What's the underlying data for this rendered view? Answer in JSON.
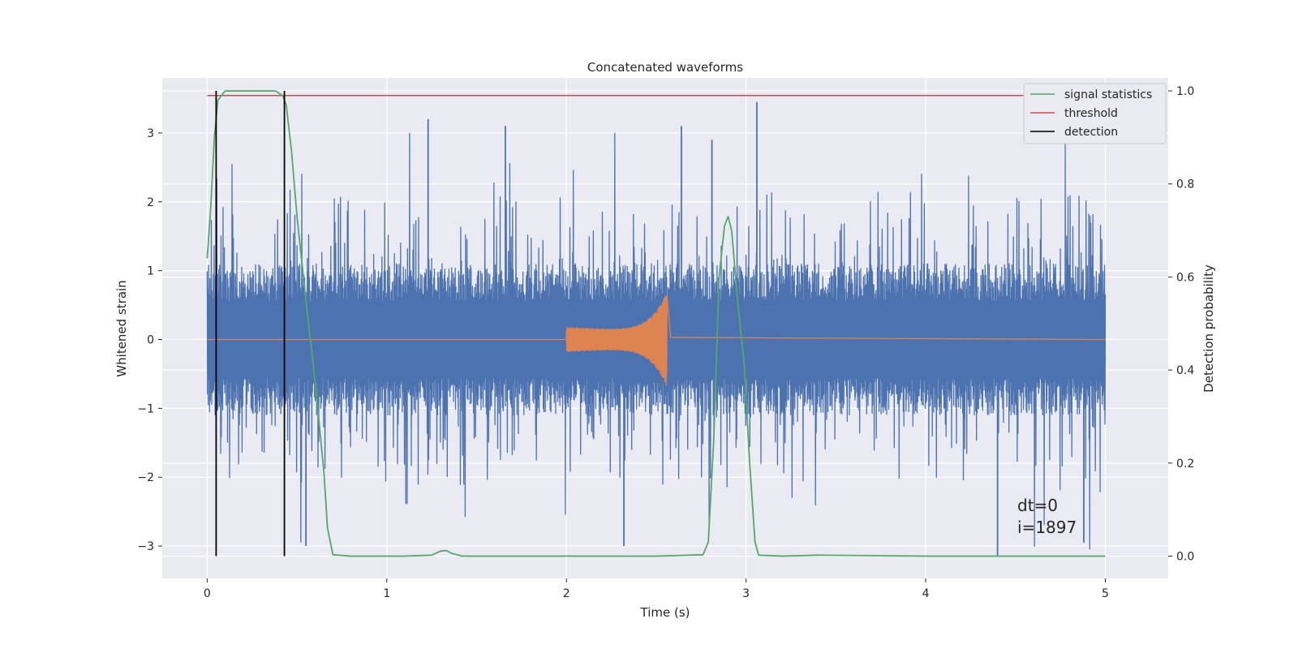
{
  "chart_data": {
    "type": "line",
    "title": "Concatenated waveforms",
    "xlabel": "Time (s)",
    "ylabel": "Whitened strain",
    "ylabel_right": "Detection probability",
    "xlim": [
      -0.25,
      5.35
    ],
    "ylim": [
      -3.47,
      3.8
    ],
    "ylim_right": [
      -0.048,
      1.028
    ],
    "xticks": [
      0,
      1,
      2,
      3,
      4,
      5
    ],
    "xtick_labels": [
      "0",
      "1",
      "2",
      "3",
      "4",
      "5"
    ],
    "yticks": [
      -3,
      -2,
      -1,
      0,
      1,
      2,
      3
    ],
    "ytick_labels": [
      "−3",
      "−2",
      "−1",
      "0",
      "1",
      "2",
      "3"
    ],
    "yticks_right": [
      0.0,
      0.2,
      0.4,
      0.6,
      0.8,
      1.0
    ],
    "ytick_labels_right": [
      "0.0",
      "0.2",
      "0.4",
      "0.6",
      "0.8",
      "1.0"
    ],
    "grid": true,
    "legend_position": "top-right",
    "colors": {
      "background": "#eaeaf2",
      "grid": "#ffffff",
      "strain": "#4c72b0",
      "injected": "#dd8452",
      "signal_statistics": "#55a868",
      "threshold": "#c44e52",
      "detection": "#000000"
    },
    "series": [
      {
        "name": "strain",
        "axis": "left",
        "kind": "noise",
        "x_range": [
          0,
          5
        ],
        "typical_envelope": 1.2,
        "spikes": [
          {
            "x": 0.55,
            "y": -3.0
          },
          {
            "x": 1.23,
            "y": 3.2
          },
          {
            "x": 1.66,
            "y": 3.1
          },
          {
            "x": 2.32,
            "y": -3.0
          },
          {
            "x": 2.64,
            "y": 3.1
          },
          {
            "x": 3.06,
            "y": 3.45
          },
          {
            "x": 4.4,
            "y": -3.15
          },
          {
            "x": 4.88,
            "y": -2.95
          },
          {
            "x": 2.81,
            "y": 2.9
          }
        ]
      },
      {
        "name": "injected signal",
        "axis": "left",
        "kind": "chirp",
        "x_range": [
          2.0,
          2.56
        ],
        "start_amplitude": 0.18,
        "peak_amplitude": 0.58
      },
      {
        "name": "signal statistics",
        "axis": "right",
        "points": [
          [
            0.0,
            0.64
          ],
          [
            0.02,
            0.75
          ],
          [
            0.04,
            0.9
          ],
          [
            0.06,
            0.98
          ],
          [
            0.1,
            1.0
          ],
          [
            0.38,
            1.0
          ],
          [
            0.42,
            0.99
          ],
          [
            0.44,
            0.97
          ],
          [
            0.47,
            0.87
          ],
          [
            0.5,
            0.73
          ],
          [
            0.55,
            0.55
          ],
          [
            0.6,
            0.38
          ],
          [
            0.65,
            0.18
          ],
          [
            0.67,
            0.06
          ],
          [
            0.7,
            0.003
          ],
          [
            0.8,
            0.0
          ],
          [
            1.1,
            0.0
          ],
          [
            1.25,
            0.002
          ],
          [
            1.3,
            0.011
          ],
          [
            1.33,
            0.012
          ],
          [
            1.36,
            0.006
          ],
          [
            1.42,
            0.0
          ],
          [
            2.5,
            0.0
          ],
          [
            2.76,
            0.003
          ],
          [
            2.79,
            0.03
          ],
          [
            2.82,
            0.25
          ],
          [
            2.85,
            0.6
          ],
          [
            2.88,
            0.71
          ],
          [
            2.9,
            0.73
          ],
          [
            2.92,
            0.7
          ],
          [
            2.95,
            0.56
          ],
          [
            2.99,
            0.41
          ],
          [
            3.02,
            0.2
          ],
          [
            3.05,
            0.03
          ],
          [
            3.07,
            0.002
          ],
          [
            3.2,
            0.0
          ],
          [
            3.4,
            0.002
          ],
          [
            4.0,
            0.0
          ],
          [
            5.0,
            0.0
          ]
        ]
      },
      {
        "name": "threshold",
        "axis": "right",
        "points": [
          [
            0.0,
            0.99
          ],
          [
            5.0,
            0.99
          ]
        ]
      },
      {
        "name": "detection",
        "axis": "right",
        "vlines": [
          0.05,
          0.43
        ],
        "ymin": 0.0,
        "ymax": 1.0
      }
    ],
    "legend": [
      "signal statistics",
      "threshold",
      "detection"
    ],
    "annotations": [
      "dt=0",
      "i=1897"
    ]
  }
}
